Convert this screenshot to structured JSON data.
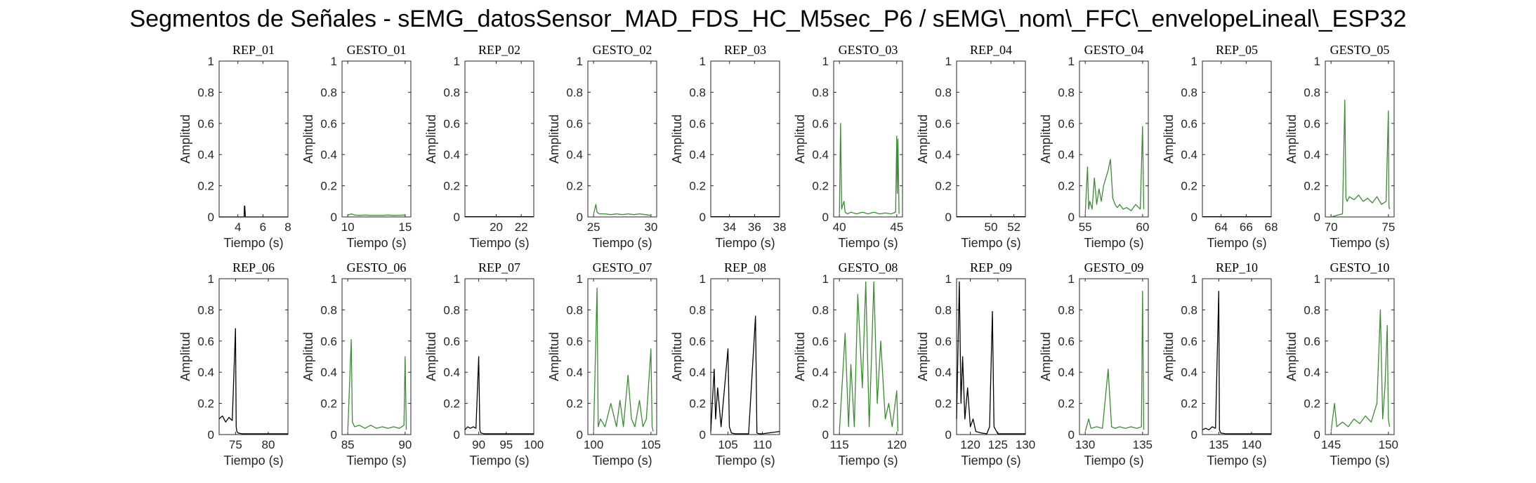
{
  "figure": {
    "title": "Segmentos de Señales - sEMG_datosSensor_MAD_FDS_HC_M5sec_P6 / sEMG\\_nom\\_FFC\\_envelopeLineal\\_ESP32"
  },
  "colors": {
    "rep": "#000000",
    "gesto": "#3c8c33",
    "axis": "#262626"
  },
  "chart_data": [
    {
      "type": "line",
      "title": "REP_01",
      "xlabel": "Tiempo (s)",
      "ylabel": "Amplitud",
      "color": "#000000",
      "xlim": [
        2.5,
        8
      ],
      "ylim": [
        0,
        1
      ],
      "xticks": [
        4,
        6,
        8
      ],
      "yticks": [
        0,
        0.2,
        0.4,
        0.6,
        0.8,
        1
      ],
      "series": [
        {
          "x": [
            2.5,
            4.5,
            4.52,
            4.55,
            4.6,
            8
          ],
          "y": [
            0,
            0,
            0.07,
            0.07,
            0,
            0
          ]
        }
      ]
    },
    {
      "type": "line",
      "title": "GESTO_01",
      "xlabel": "Tiempo (s)",
      "ylabel": "Amplitud",
      "color": "#3c8c33",
      "xlim": [
        9.5,
        15.5
      ],
      "ylim": [
        0,
        1
      ],
      "xticks": [
        10,
        15
      ],
      "yticks": [
        0,
        0.2,
        0.4,
        0.6,
        0.8,
        1
      ],
      "series": [
        {
          "x": [
            10,
            10.3,
            10.6,
            11,
            11.5,
            12,
            12.5,
            13,
            13.5,
            14,
            14.5,
            15
          ],
          "y": [
            0.01,
            0.02,
            0.012,
            0.01,
            0.012,
            0.01,
            0.011,
            0.01,
            0.012,
            0.01,
            0.011,
            0.012
          ]
        }
      ]
    },
    {
      "type": "line",
      "title": "REP_02",
      "xlabel": "Tiempo (s)",
      "ylabel": "Amplitud",
      "color": "#000000",
      "xlim": [
        17.5,
        23
      ],
      "ylim": [
        0,
        1
      ],
      "xticks": [
        20,
        22
      ],
      "yticks": [
        0,
        0.2,
        0.4,
        0.6,
        0.8,
        1
      ],
      "series": [
        {
          "x": [
            17.5,
            23
          ],
          "y": [
            0.002,
            0.002
          ]
        }
      ]
    },
    {
      "type": "line",
      "title": "GESTO_02",
      "xlabel": "Tiempo (s)",
      "ylabel": "Amplitud",
      "color": "#3c8c33",
      "xlim": [
        24.5,
        30.5
      ],
      "ylim": [
        0,
        1
      ],
      "xticks": [
        25,
        30
      ],
      "yticks": [
        0,
        0.2,
        0.4,
        0.6,
        0.8,
        1
      ],
      "series": [
        {
          "x": [
            25,
            25.2,
            25.3,
            25.5,
            26,
            26.5,
            27,
            27.5,
            28,
            28.5,
            29,
            29.5,
            30
          ],
          "y": [
            0.02,
            0.08,
            0.03,
            0.02,
            0.02,
            0.015,
            0.02,
            0.015,
            0.02,
            0.015,
            0.02,
            0.015,
            0.01
          ]
        }
      ]
    },
    {
      "type": "line",
      "title": "REP_03",
      "xlabel": "Tiempo (s)",
      "ylabel": "Amplitud",
      "color": "#000000",
      "xlim": [
        32.5,
        38
      ],
      "ylim": [
        0,
        1
      ],
      "xticks": [
        34,
        36,
        38
      ],
      "yticks": [
        0,
        0.2,
        0.4,
        0.6,
        0.8,
        1
      ],
      "series": [
        {
          "x": [
            32.5,
            38
          ],
          "y": [
            0.002,
            0.002
          ]
        }
      ]
    },
    {
      "type": "line",
      "title": "GESTO_03",
      "xlabel": "Tiempo (s)",
      "ylabel": "Amplitud",
      "color": "#3c8c33",
      "xlim": [
        39.5,
        45.5
      ],
      "ylim": [
        0,
        1
      ],
      "xticks": [
        40,
        45
      ],
      "yticks": [
        0,
        0.2,
        0.4,
        0.6,
        0.8,
        1
      ],
      "series": [
        {
          "x": [
            40,
            40.1,
            40.2,
            40.3,
            40.4,
            40.5,
            40.7,
            41,
            41.5,
            42,
            42.5,
            43,
            43.5,
            44,
            44.5,
            44.9,
            45,
            45.05,
            45.1,
            45.2
          ],
          "y": [
            0.02,
            0.6,
            0.05,
            0.08,
            0.1,
            0.03,
            0.02,
            0.03,
            0.02,
            0.03,
            0.02,
            0.03,
            0.02,
            0.025,
            0.02,
            0.03,
            0.52,
            0.15,
            0.5,
            0.02
          ]
        }
      ]
    },
    {
      "type": "line",
      "title": "REP_04",
      "xlabel": "Tiempo (s)",
      "ylabel": "Amplitud",
      "color": "#000000",
      "xlim": [
        47,
        53
      ],
      "ylim": [
        0,
        1
      ],
      "xticks": [
        50,
        52
      ],
      "yticks": [
        0,
        0.2,
        0.4,
        0.6,
        0.8,
        1
      ],
      "series": [
        {
          "x": [
            47,
            53
          ],
          "y": [
            0.002,
            0.002
          ]
        }
      ]
    },
    {
      "type": "line",
      "title": "GESTO_04",
      "xlabel": "Tiempo (s)",
      "ylabel": "Amplitud",
      "color": "#3c8c33",
      "xlim": [
        54.5,
        60.5
      ],
      "ylim": [
        0,
        1
      ],
      "xticks": [
        55,
        60
      ],
      "yticks": [
        0,
        0.2,
        0.4,
        0.6,
        0.8,
        1
      ],
      "series": [
        {
          "x": [
            55,
            55.2,
            55.3,
            55.4,
            55.6,
            55.8,
            56,
            56.2,
            56.4,
            56.6,
            56.8,
            57,
            57.2,
            57.4,
            57.6,
            57.8,
            58,
            58.3,
            58.6,
            59,
            59.4,
            59.8,
            60,
            60.1
          ],
          "y": [
            0.02,
            0.32,
            0.05,
            0.1,
            0.05,
            0.25,
            0.08,
            0.18,
            0.1,
            0.2,
            0.25,
            0.3,
            0.37,
            0.12,
            0.08,
            0.06,
            0.08,
            0.05,
            0.06,
            0.04,
            0.08,
            0.05,
            0.58,
            0.05
          ]
        }
      ]
    },
    {
      "type": "line",
      "title": "REP_05",
      "xlabel": "Tiempo (s)",
      "ylabel": "Amplitud",
      "color": "#000000",
      "xlim": [
        62.5,
        68
      ],
      "ylim": [
        0,
        1
      ],
      "xticks": [
        64,
        66,
        68
      ],
      "yticks": [
        0,
        0.2,
        0.4,
        0.6,
        0.8,
        1
      ],
      "series": [
        {
          "x": [
            62.5,
            68
          ],
          "y": [
            0.002,
            0.002
          ]
        }
      ]
    },
    {
      "type": "line",
      "title": "GESTO_05",
      "xlabel": "Tiempo (s)",
      "ylabel": "Amplitud",
      "color": "#3c8c33",
      "xlim": [
        69.5,
        75.5
      ],
      "ylim": [
        0,
        1
      ],
      "xticks": [
        70,
        75
      ],
      "yticks": [
        0,
        0.2,
        0.4,
        0.6,
        0.8,
        1
      ],
      "series": [
        {
          "x": [
            70,
            71,
            71.2,
            71.3,
            71.4,
            71.6,
            72,
            72.4,
            72.8,
            73.2,
            73.6,
            74,
            74.4,
            74.8,
            75,
            75.05,
            75.1
          ],
          "y": [
            0,
            0.02,
            0.75,
            0.12,
            0.1,
            0.13,
            0.11,
            0.14,
            0.1,
            0.12,
            0.09,
            0.13,
            0.08,
            0.1,
            0.68,
            0.07,
            0.05
          ]
        }
      ]
    },
    {
      "type": "line",
      "title": "REP_06",
      "xlabel": "Tiempo (s)",
      "ylabel": "Amplitud",
      "color": "#000000",
      "xlim": [
        72.5,
        83
      ],
      "ylim": [
        0,
        1
      ],
      "xticks": [
        75,
        80
      ],
      "yticks": [
        0,
        0.2,
        0.4,
        0.6,
        0.8,
        1
      ],
      "series": [
        {
          "x": [
            72.5,
            73,
            73.5,
            74,
            74.5,
            75,
            75.1,
            75.2,
            75.4,
            76,
            78,
            80,
            83
          ],
          "y": [
            0.1,
            0.12,
            0.08,
            0.11,
            0.09,
            0.68,
            0.05,
            0.02,
            0.01,
            0.005,
            0.005,
            0.005,
            0.005
          ]
        }
      ]
    },
    {
      "type": "line",
      "title": "GESTO_06",
      "xlabel": "Tiempo (s)",
      "ylabel": "Amplitud",
      "color": "#3c8c33",
      "xlim": [
        84.5,
        90.5
      ],
      "ylim": [
        0,
        1
      ],
      "xticks": [
        85,
        90
      ],
      "yticks": [
        0,
        0.2,
        0.4,
        0.6,
        0.8,
        1
      ],
      "series": [
        {
          "x": [
            85,
            85.3,
            85.4,
            85.6,
            86,
            86.5,
            87,
            87.5,
            88,
            88.5,
            89,
            89.5,
            89.9,
            90,
            90.1
          ],
          "y": [
            0.02,
            0.61,
            0.08,
            0.05,
            0.06,
            0.04,
            0.06,
            0.04,
            0.05,
            0.04,
            0.05,
            0.04,
            0.06,
            0.5,
            0.03
          ]
        }
      ]
    },
    {
      "type": "line",
      "title": "REP_07",
      "xlabel": "Tiempo (s)",
      "ylabel": "Amplitud",
      "color": "#000000",
      "xlim": [
        87.5,
        100
      ],
      "ylim": [
        0,
        1
      ],
      "xticks": [
        90,
        95,
        100
      ],
      "yticks": [
        0,
        0.2,
        0.4,
        0.6,
        0.8,
        1
      ],
      "series": [
        {
          "x": [
            87.5,
            88,
            88.5,
            89,
            89.5,
            90,
            90.2,
            90.4,
            91,
            93,
            95,
            100
          ],
          "y": [
            0.03,
            0.05,
            0.04,
            0.05,
            0.04,
            0.5,
            0.03,
            0.01,
            0.005,
            0.005,
            0.005,
            0.005
          ]
        }
      ]
    },
    {
      "type": "line",
      "title": "GESTO_07",
      "xlabel": "Tiempo (s)",
      "ylabel": "Amplitud",
      "color": "#3c8c33",
      "xlim": [
        99.5,
        105.5
      ],
      "ylim": [
        0,
        1
      ],
      "xticks": [
        100,
        105
      ],
      "yticks": [
        0,
        0.2,
        0.4,
        0.6,
        0.8,
        1
      ],
      "series": [
        {
          "x": [
            100,
            100.3,
            100.4,
            100.6,
            101,
            101.5,
            102,
            102.3,
            102.6,
            103,
            103.3,
            103.6,
            104,
            104.3,
            104.6,
            105,
            105.1,
            105.2
          ],
          "y": [
            0.02,
            0.94,
            0.05,
            0.1,
            0.05,
            0.2,
            0.05,
            0.22,
            0.05,
            0.38,
            0.1,
            0.05,
            0.22,
            0.05,
            0.1,
            0.55,
            0.05,
            0.02
          ]
        }
      ]
    },
    {
      "type": "line",
      "title": "REP_08",
      "xlabel": "Tiempo (s)",
      "ylabel": "Amplitud",
      "color": "#000000",
      "xlim": [
        102.5,
        112.5
      ],
      "ylim": [
        0,
        1
      ],
      "xticks": [
        105,
        110
      ],
      "yticks": [
        0,
        0.2,
        0.4,
        0.6,
        0.8,
        1
      ],
      "series": [
        {
          "x": [
            102.5,
            103,
            103.2,
            103.5,
            104,
            105,
            105.2,
            105.5,
            106,
            108,
            109,
            109.2,
            109.5,
            110,
            112.5
          ],
          "y": [
            0.02,
            0.42,
            0.1,
            0.3,
            0.05,
            0.55,
            0.05,
            0.01,
            0.005,
            0.005,
            0.76,
            0.01,
            0.005,
            0.005,
            0.02
          ]
        }
      ]
    },
    {
      "type": "line",
      "title": "GESTO_08",
      "xlabel": "Tiempo (s)",
      "ylabel": "Amplitud",
      "color": "#3c8c33",
      "xlim": [
        114.5,
        120.5
      ],
      "ylim": [
        0,
        1
      ],
      "xticks": [
        115,
        120
      ],
      "yticks": [
        0,
        0.2,
        0.4,
        0.6,
        0.8,
        1
      ],
      "series": [
        {
          "x": [
            115,
            115.5,
            115.8,
            116,
            116.3,
            116.6,
            117,
            117.3,
            117.6,
            117.8,
            118,
            118.3,
            118.6,
            119,
            119.3,
            119.6,
            120,
            120.1
          ],
          "y": [
            0.02,
            0.65,
            0.05,
            0.45,
            0.05,
            0.9,
            0.3,
            0.98,
            0.05,
            0.5,
            0.98,
            0.2,
            0.6,
            0.1,
            0.2,
            0.05,
            0.28,
            0.02
          ]
        }
      ]
    },
    {
      "type": "line",
      "title": "REP_09",
      "xlabel": "Tiempo (s)",
      "ylabel": "Amplitud",
      "color": "#000000",
      "xlim": [
        117.5,
        130
      ],
      "ylim": [
        0,
        1
      ],
      "xticks": [
        120,
        125,
        130
      ],
      "yticks": [
        0,
        0.2,
        0.4,
        0.6,
        0.8,
        1
      ],
      "series": [
        {
          "x": [
            117.5,
            118,
            118.3,
            118.6,
            119,
            119.5,
            120,
            120.5,
            121,
            122,
            123,
            123.5,
            124,
            124.3,
            125,
            127,
            130
          ],
          "y": [
            0.1,
            0.98,
            0.2,
            0.5,
            0.1,
            0.3,
            0.05,
            0.1,
            0.02,
            0.01,
            0.005,
            0.05,
            0.79,
            0.05,
            0.005,
            0.005,
            0.005
          ]
        }
      ]
    },
    {
      "type": "line",
      "title": "GESTO_09",
      "xlabel": "Tiempo (s)",
      "ylabel": "Amplitud",
      "color": "#3c8c33",
      "xlim": [
        129.5,
        135.5
      ],
      "ylim": [
        0,
        1
      ],
      "xticks": [
        130,
        135
      ],
      "yticks": [
        0,
        0.2,
        0.4,
        0.6,
        0.8,
        1
      ],
      "series": [
        {
          "x": [
            130,
            130.3,
            130.5,
            131,
            131.5,
            132,
            132.3,
            132.6,
            133,
            133.5,
            134,
            134.5,
            134.9,
            135,
            135.1
          ],
          "y": [
            0.02,
            0.1,
            0.04,
            0.05,
            0.04,
            0.42,
            0.05,
            0.04,
            0.05,
            0.04,
            0.05,
            0.04,
            0.05,
            0.92,
            0.03
          ]
        }
      ]
    },
    {
      "type": "line",
      "title": "REP_10",
      "xlabel": "Tiempo (s)",
      "ylabel": "Amplitud",
      "color": "#000000",
      "xlim": [
        132.5,
        143
      ],
      "ylim": [
        0,
        1
      ],
      "xticks": [
        135,
        140
      ],
      "yticks": [
        0,
        0.2,
        0.4,
        0.6,
        0.8,
        1
      ],
      "series": [
        {
          "x": [
            132.5,
            133,
            133.5,
            134,
            134.5,
            135,
            135.1,
            135.3,
            136,
            138,
            140,
            143
          ],
          "y": [
            0.03,
            0.04,
            0.03,
            0.05,
            0.04,
            0.92,
            0.03,
            0.01,
            0.005,
            0.005,
            0.005,
            0.005
          ]
        }
      ]
    },
    {
      "type": "line",
      "title": "GESTO_10",
      "xlabel": "Tiempo (s)",
      "ylabel": "Amplitud",
      "color": "#3c8c33",
      "xlim": [
        144.5,
        150.5
      ],
      "ylim": [
        0,
        1
      ],
      "xticks": [
        145,
        150
      ],
      "yticks": [
        0,
        0.2,
        0.4,
        0.6,
        0.8,
        1
      ],
      "series": [
        {
          "x": [
            145,
            145.3,
            145.5,
            146,
            146.5,
            147,
            147.5,
            148,
            148.5,
            149,
            149.3,
            149.5,
            149.7,
            149.9,
            150,
            150.1
          ],
          "y": [
            0.02,
            0.2,
            0.05,
            0.08,
            0.05,
            0.1,
            0.07,
            0.12,
            0.08,
            0.2,
            0.8,
            0.1,
            0.3,
            0.7,
            0.1,
            0.05
          ]
        }
      ]
    }
  ]
}
